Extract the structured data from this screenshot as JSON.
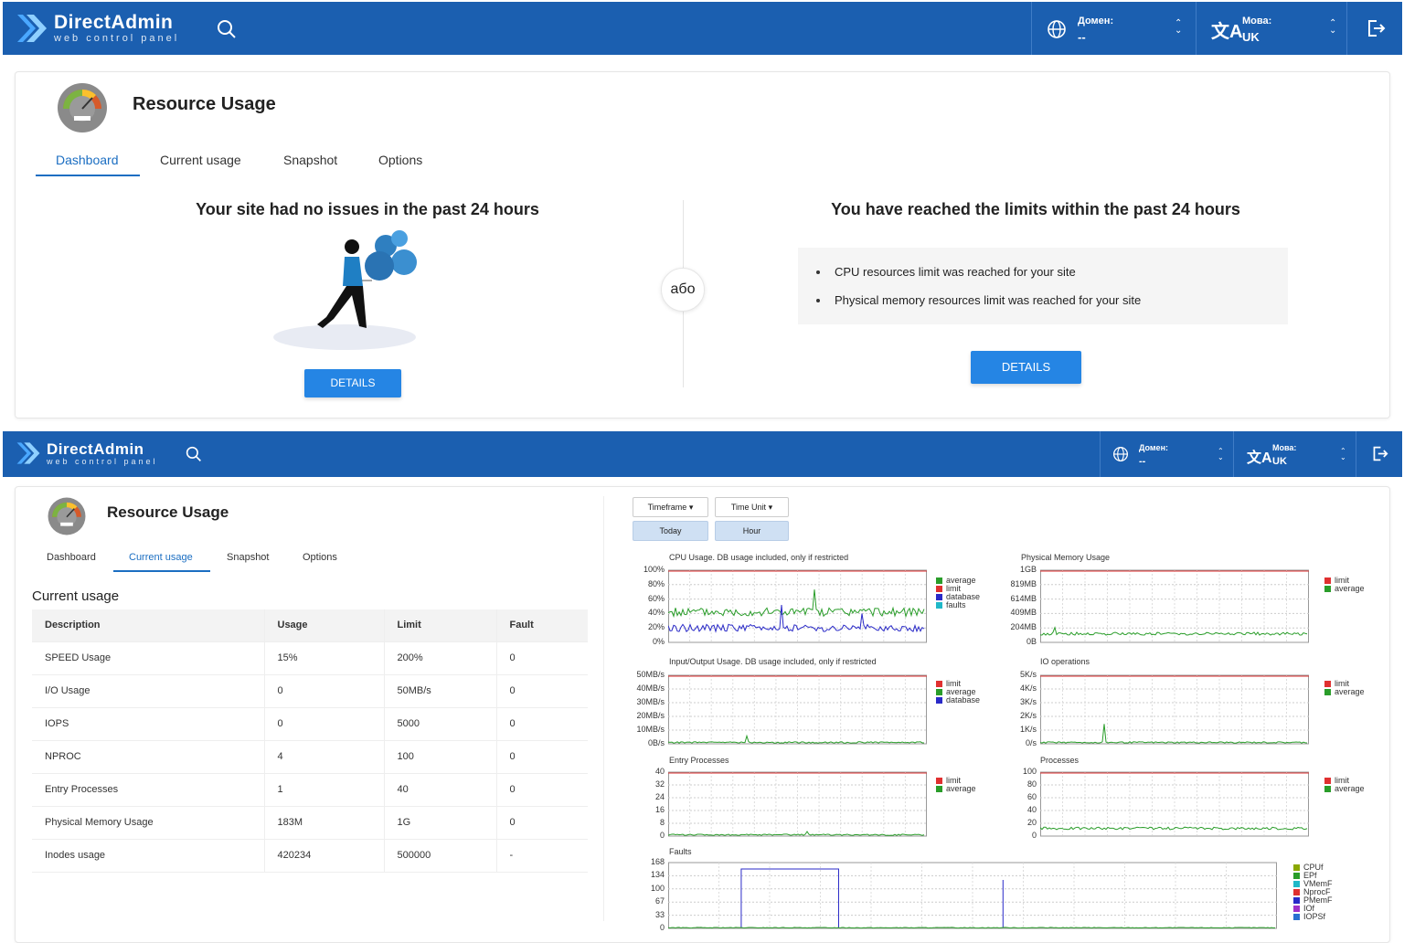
{
  "brand": {
    "name": "DirectAdmin",
    "tagline": "web control panel"
  },
  "header": {
    "domain_label": "Домен:",
    "domain_value": "--",
    "lang_label": "Мова:",
    "lang_value": "UK"
  },
  "page": {
    "title": "Resource Usage"
  },
  "tabs": [
    "Dashboard",
    "Current usage",
    "Snapshot",
    "Options"
  ],
  "dashboard": {
    "left_title": "Your site had no issues in the past 24 hours",
    "or_label": "або",
    "right_title": "You have reached the limits within the past 24 hours",
    "issues": [
      "CPU resources limit was reached for your site",
      "Physical memory resources limit was reached for your site"
    ],
    "details_label": "DETAILS"
  },
  "current": {
    "heading": "Current usage",
    "columns": [
      "Description",
      "Usage",
      "Limit",
      "Fault"
    ],
    "rows": [
      [
        "SPEED Usage",
        "15%",
        "200%",
        "0"
      ],
      [
        "I/O Usage",
        "0",
        "50MB/s",
        "0"
      ],
      [
        "IOPS",
        "0",
        "5000",
        "0"
      ],
      [
        "NPROC",
        "4",
        "100",
        "0"
      ],
      [
        "Entry Processes",
        "1",
        "40",
        "0"
      ],
      [
        "Physical Memory Usage",
        "183M",
        "1G",
        "0"
      ],
      [
        "Inodes usage",
        "420234",
        "500000",
        "-"
      ]
    ]
  },
  "controls": {
    "timeframe": "Timeframe",
    "time_unit": "Time Unit",
    "today": "Today",
    "hour": "Hour"
  },
  "colors": {
    "header": "#1b5fb0",
    "accent": "#2585e4",
    "limit": "#e03030",
    "average": "#2a9d2a",
    "database": "#2a2ac8",
    "faults": "#20b8c8"
  },
  "chart_data": [
    {
      "type": "line",
      "title": "CPU Usage. DB usage included, only if restricted",
      "yticks": [
        "100%",
        "80%",
        "60%",
        "40%",
        "20%",
        "0%"
      ],
      "legend": [
        "average",
        "limit",
        "database",
        "faults"
      ]
    },
    {
      "type": "line",
      "title": "Physical Memory Usage",
      "yticks": [
        "1GB",
        "819MB",
        "614MB",
        "409MB",
        "204MB",
        "0B"
      ],
      "legend": [
        "limit",
        "average"
      ]
    },
    {
      "type": "line",
      "title": "Input/Output Usage. DB usage included, only if restricted",
      "yticks": [
        "50MB/s",
        "40MB/s",
        "30MB/s",
        "20MB/s",
        "10MB/s",
        "0B/s"
      ],
      "legend": [
        "limit",
        "average",
        "database"
      ]
    },
    {
      "type": "line",
      "title": "IO operations",
      "yticks": [
        "5K/s",
        "4K/s",
        "3K/s",
        "2K/s",
        "1K/s",
        "0/s"
      ],
      "legend": [
        "limit",
        "average"
      ]
    },
    {
      "type": "line",
      "title": "Entry Processes",
      "yticks": [
        "40",
        "32",
        "24",
        "16",
        "8",
        "0"
      ],
      "legend": [
        "limit",
        "average"
      ]
    },
    {
      "type": "line",
      "title": "Processes",
      "yticks": [
        "100",
        "80",
        "60",
        "40",
        "20",
        "0"
      ],
      "legend": [
        "limit",
        "average"
      ]
    },
    {
      "type": "line",
      "title": "Faults",
      "yticks": [
        "168",
        "134",
        "100",
        "67",
        "33",
        "0"
      ],
      "legend": [
        "CPUf",
        "EPf",
        "VMemF",
        "NprocF",
        "PMemF",
        "IOf",
        "IOPSf"
      ]
    }
  ]
}
